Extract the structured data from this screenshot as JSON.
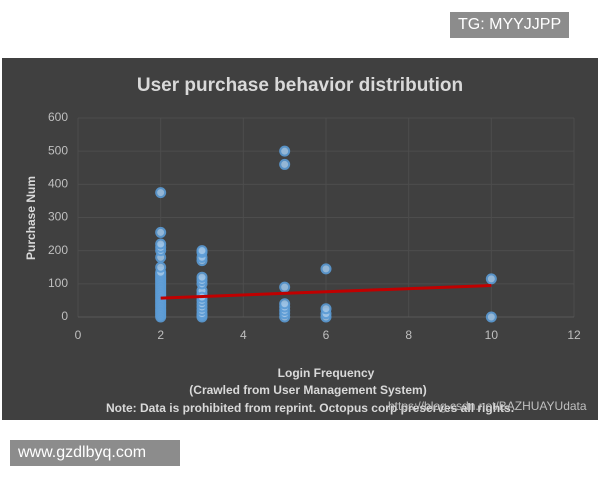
{
  "chart_data": {
    "type": "scatter",
    "title": "User purchase behavior distribution",
    "x_label": "Login Frequency",
    "y_label": "Purchase Num",
    "notes": [
      "(Crawled from  User Management  System)",
      "Note: Data is prohibited from reprint. Octopus corp preserves all rights."
    ],
    "xlim": [
      0,
      12
    ],
    "xticks": [
      0,
      2,
      4,
      6,
      8,
      10,
      12
    ],
    "ylim": [
      0,
      600
    ],
    "yticks": [
      0,
      100,
      200,
      300,
      400,
      500,
      600
    ],
    "grid": true,
    "series": [
      {
        "color": "#5b9bd5",
        "x": [
          2,
          2,
          2,
          2,
          2,
          2,
          2,
          2,
          2,
          2,
          2,
          2,
          2,
          2,
          2,
          2,
          2,
          2,
          2,
          2,
          2,
          2,
          2,
          2,
          2,
          2,
          2,
          2,
          2,
          2,
          2,
          2,
          2,
          2,
          2,
          3,
          3,
          3,
          3,
          3,
          3,
          3,
          3,
          3,
          3,
          3,
          3,
          3,
          3,
          3,
          3,
          3,
          3,
          5,
          5,
          5,
          5,
          5,
          5,
          5,
          5,
          6,
          6,
          6,
          6,
          10,
          10
        ],
        "values": [
          0,
          5,
          10,
          15,
          20,
          25,
          30,
          35,
          40,
          45,
          50,
          55,
          60,
          65,
          70,
          75,
          80,
          85,
          90,
          95,
          100,
          105,
          110,
          115,
          120,
          125,
          130,
          135,
          150,
          180,
          200,
          210,
          220,
          255,
          375,
          0,
          5,
          10,
          20,
          30,
          40,
          50,
          60,
          70,
          80,
          100,
          110,
          120,
          170,
          180,
          195,
          200,
          60,
          0,
          10,
          20,
          30,
          40,
          90,
          460,
          500,
          0,
          10,
          25,
          145,
          0,
          115
        ]
      }
    ],
    "trendline": {
      "color": "#c00000",
      "x": [
        2,
        10
      ],
      "values": [
        57,
        95
      ]
    }
  },
  "watermarks": [
    "TG: MYYJJPP",
    "www.gzdlbyq.com",
    "https://blog.csdn.net/BAZHUAYUdata"
  ]
}
